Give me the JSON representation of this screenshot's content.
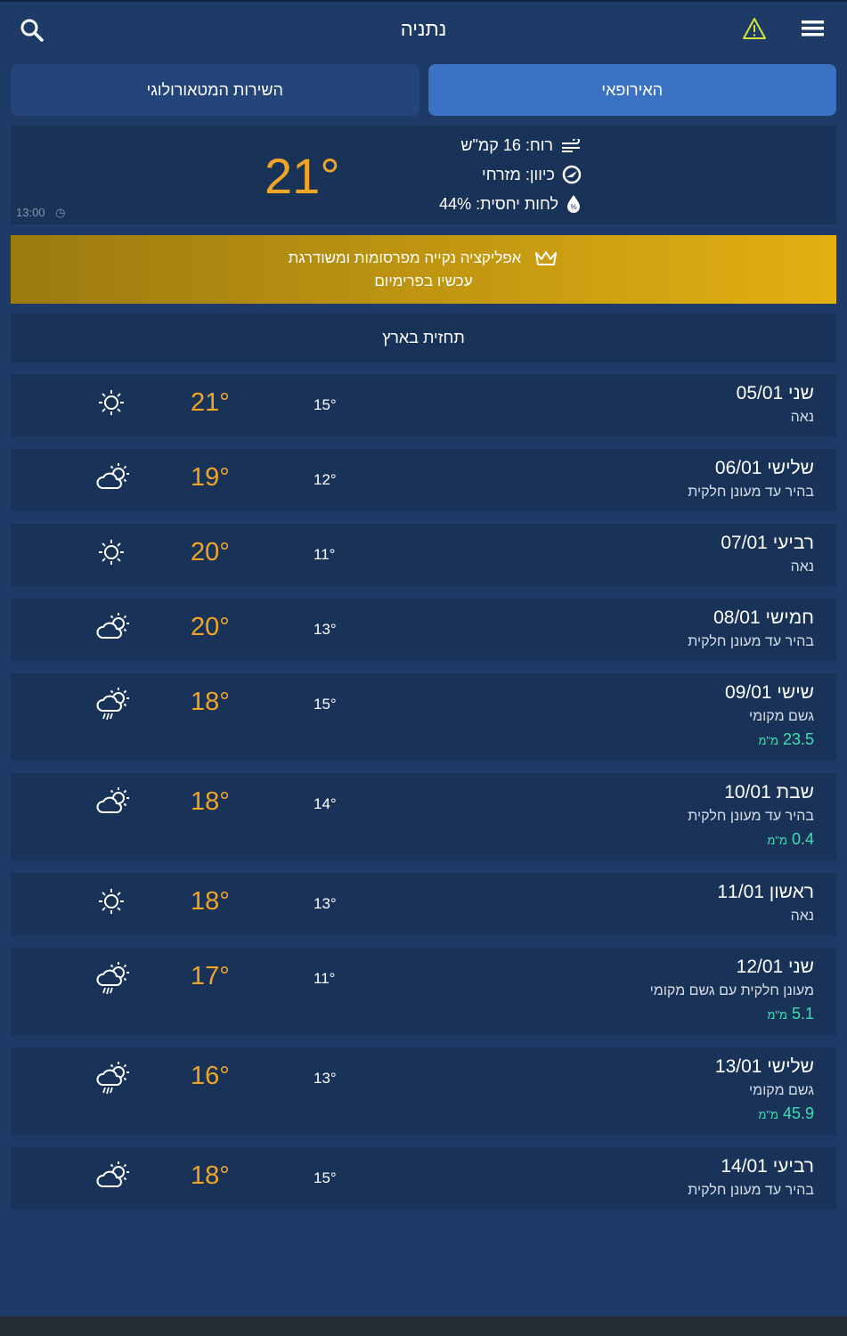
{
  "header": {
    "city": "נתניה",
    "icons": [
      "search-icon",
      "warning-icon",
      "menu-icon"
    ]
  },
  "tabs": [
    {
      "label": "השירות המטאורולוגי",
      "active": false
    },
    {
      "label": "האירופאי",
      "active": true
    }
  ],
  "current": {
    "temp": "21°",
    "time": "13:00",
    "wind": "רוח: 16 קמ\"ש",
    "direction": "כיוון: מזרחי",
    "humidity": "לחות יחסית: 44%"
  },
  "promo": {
    "line1": "אפליקציה נקייה מפרסומות ומשודרגת",
    "line2": "עכשיו בפרימיום"
  },
  "section_title": "תחזית בארץ",
  "rain_unit": "מ\"מ",
  "days": [
    {
      "day": "שני 05/01",
      "desc": "נאה",
      "max": "21°",
      "min": "15°",
      "icon": "sun",
      "rain": null
    },
    {
      "day": "שלישי 06/01",
      "desc": "בהיר עד מעונן חלקית",
      "max": "19°",
      "min": "12°",
      "icon": "partly-cloudy",
      "rain": null
    },
    {
      "day": "רביעי 07/01",
      "desc": "נאה",
      "max": "20°",
      "min": "11°",
      "icon": "sun",
      "rain": null
    },
    {
      "day": "חמישי 08/01",
      "desc": "בהיר עד מעונן חלקית",
      "max": "20°",
      "min": "13°",
      "icon": "partly-cloudy",
      "rain": null
    },
    {
      "day": "שישי 09/01",
      "desc": "גשם מקומי",
      "max": "18°",
      "min": "15°",
      "icon": "rain",
      "rain": "23.5"
    },
    {
      "day": "שבת 10/01",
      "desc": "בהיר עד מעונן חלקית",
      "max": "18°",
      "min": "14°",
      "icon": "partly-cloudy",
      "rain": "0.4"
    },
    {
      "day": "ראשון 11/01",
      "desc": "נאה",
      "max": "18°",
      "min": "13°",
      "icon": "sun",
      "rain": null
    },
    {
      "day": "שני 12/01",
      "desc": "מעונן חלקית עם גשם מקומי",
      "max": "17°",
      "min": "11°",
      "icon": "rain",
      "rain": "5.1"
    },
    {
      "day": "שלישי 13/01",
      "desc": "גשם מקומי",
      "max": "16°",
      "min": "13°",
      "icon": "rain",
      "rain": "45.9"
    },
    {
      "day": "רביעי 14/01",
      "desc": "בהיר עד מעונן חלקית",
      "max": "18°",
      "min": "15°",
      "icon": "partly-cloudy",
      "rain": null
    }
  ],
  "colors": {
    "background": "#1d3b66",
    "card": "#183258",
    "accent_temp": "#f0a526",
    "rain": "#3ee0b3",
    "active_tab": "#3b72c4"
  }
}
